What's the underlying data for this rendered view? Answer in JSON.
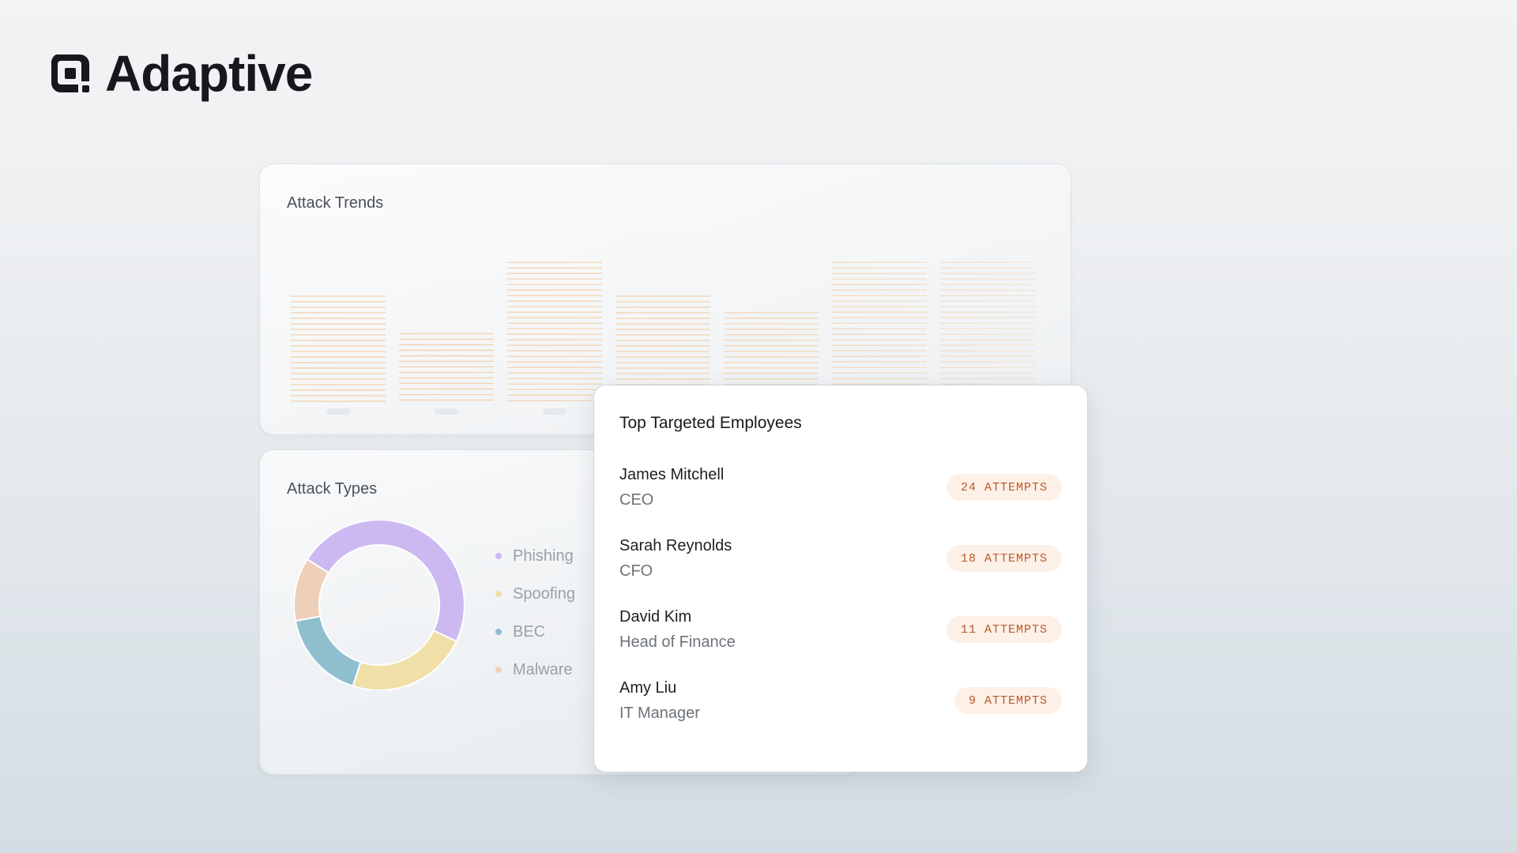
{
  "brand": {
    "name": "Adaptive"
  },
  "attack_trends": {
    "title": "Attack Trends",
    "chart_data": {
      "type": "bar",
      "values": [
        140,
        90,
        185,
        140,
        118,
        185,
        185
      ],
      "ylim": [
        0,
        200
      ],
      "color": "#f4c38e"
    }
  },
  "attack_types": {
    "title": "Attack Types",
    "chart_data": {
      "type": "pie",
      "categories": [
        "Phishing",
        "Spoofing",
        "BEC",
        "Malware"
      ],
      "values": [
        48,
        23,
        17,
        12
      ],
      "colors": [
        "#cdb9f2",
        "#f1dfa8",
        "#8fbfcf",
        "#eecfb7"
      ]
    }
  },
  "top_targeted": {
    "title": "Top Targeted Employees",
    "employees": [
      {
        "name": "James Mitchell",
        "role": "CEO",
        "attempts": "24 ATTEMPTS"
      },
      {
        "name": "Sarah Reynolds",
        "role": "CFO",
        "attempts": "18 ATTEMPTS"
      },
      {
        "name": "David Kim",
        "role": "Head of Finance",
        "attempts": "11 ATTEMPTS"
      },
      {
        "name": "Amy Liu",
        "role": "IT Manager",
        "attempts": "9 ATTEMPTS"
      }
    ]
  }
}
